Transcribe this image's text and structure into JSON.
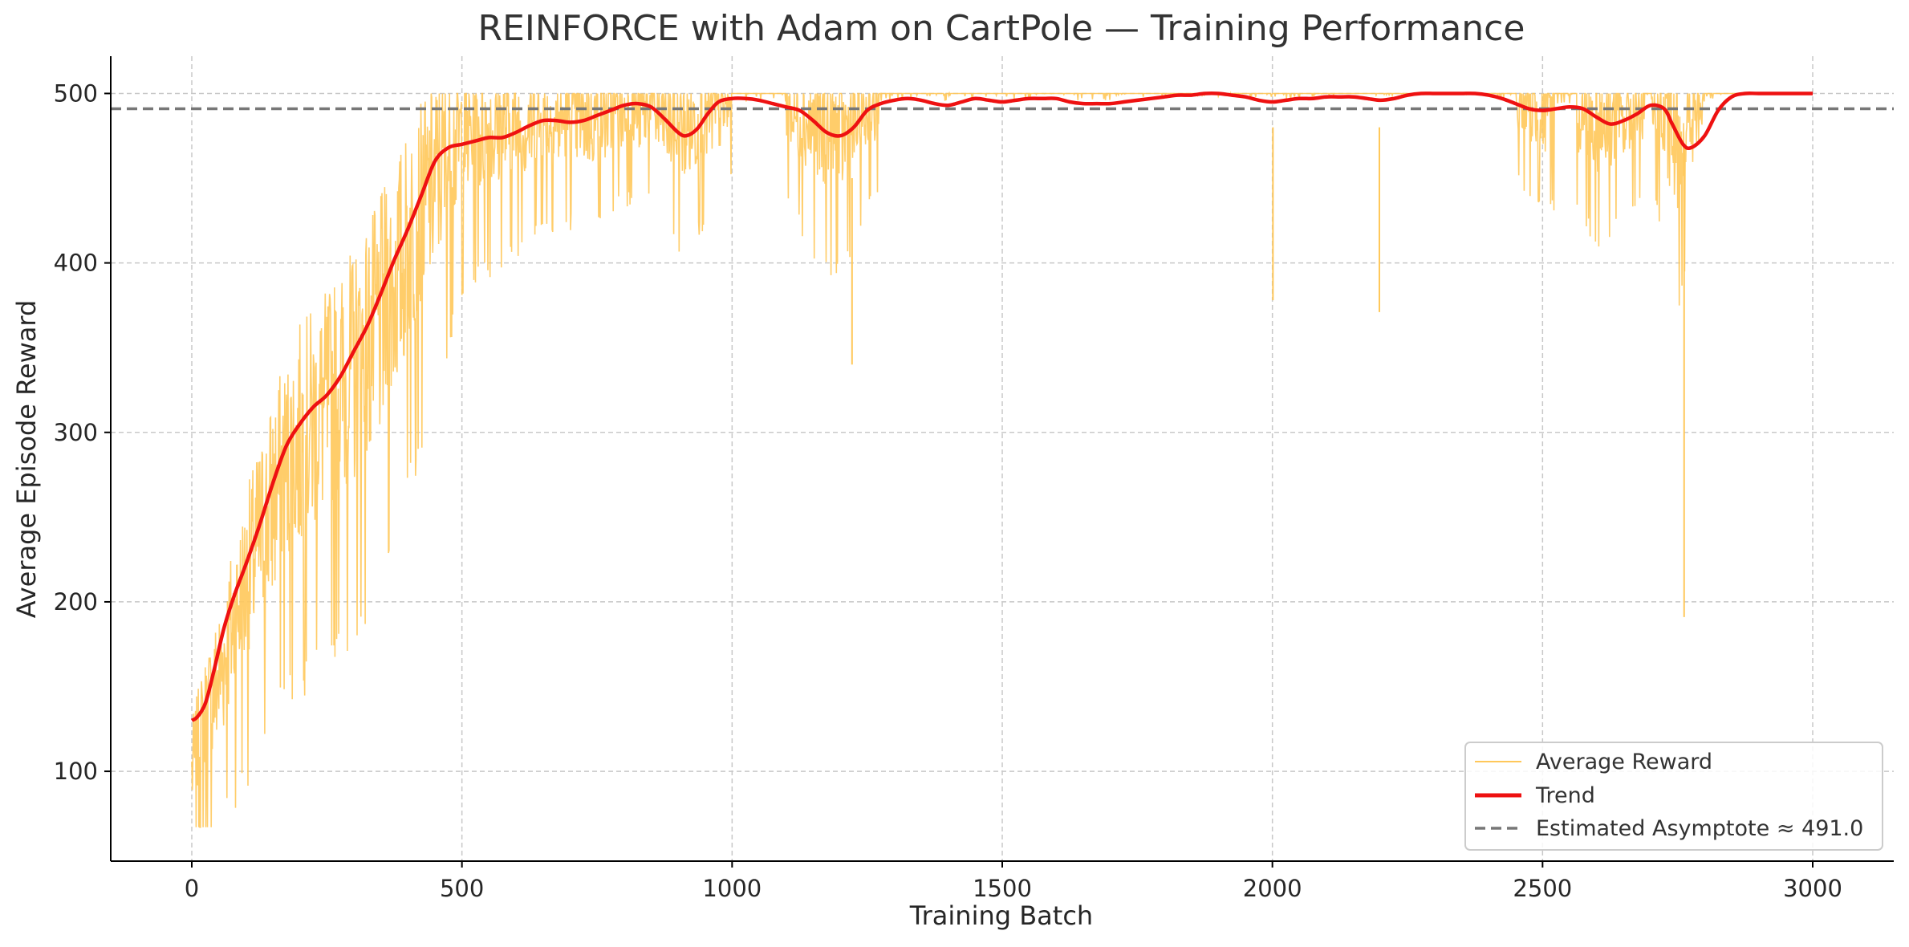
{
  "chart_data": {
    "type": "line",
    "title": "REINFORCE with Adam on CartPole — Training Performance",
    "xlabel": "Training Batch",
    "ylabel": "Average Episode Reward",
    "xlim": [
      -150,
      3150
    ],
    "ylim": [
      47,
      522
    ],
    "xticks": [
      0,
      500,
      1000,
      1500,
      2000,
      2500,
      3000
    ],
    "yticks": [
      100,
      200,
      300,
      400,
      500
    ],
    "grid": true,
    "legend_position": "bottom-right",
    "colors": {
      "average_reward": "#ffc85a",
      "trend": "#ee1111",
      "asymptote": "#777777",
      "grid": "#c8c8c8",
      "axis": "#000000"
    },
    "series": [
      {
        "name": "Average Reward",
        "style": "thin-noisy-line",
        "envelope": {
          "x": [
            0,
            25,
            50,
            75,
            100,
            125,
            150,
            175,
            200,
            250,
            300,
            350,
            400,
            450,
            500,
            550,
            600,
            650,
            700,
            750,
            800,
            850,
            900,
            950,
            1000,
            1050,
            1100,
            1150,
            1200,
            1250,
            1300,
            1350,
            1400,
            1450,
            1500,
            1550,
            1600,
            1650,
            1700,
            1750,
            1800,
            1850,
            1900,
            1950,
            2000,
            2050,
            2100,
            2150,
            2200,
            2250,
            2300,
            2350,
            2400,
            2450,
            2500,
            2550,
            2600,
            2650,
            2700,
            2750,
            2800,
            2850,
            2900,
            2950,
            3000
          ],
          "mean": [
            100,
            130,
            155,
            185,
            210,
            235,
            260,
            280,
            295,
            315,
            335,
            365,
            410,
            450,
            475,
            478,
            480,
            482,
            485,
            485,
            488,
            490,
            478,
            485,
            492,
            494,
            490,
            480,
            474,
            488,
            494,
            495,
            493,
            494,
            495,
            495,
            495,
            492,
            494,
            496,
            497,
            497,
            497,
            497,
            495,
            496,
            498,
            498,
            496,
            499,
            499,
            499,
            499,
            492,
            488,
            491,
            483,
            485,
            492,
            468,
            494,
            500,
            500,
            500,
            500
          ],
          "spread": [
            30,
            40,
            45,
            50,
            55,
            60,
            65,
            65,
            70,
            70,
            75,
            75,
            70,
            60,
            45,
            40,
            35,
            30,
            30,
            30,
            25,
            25,
            35,
            30,
            20,
            20,
            25,
            35,
            40,
            25,
            20,
            20,
            22,
            20,
            20,
            18,
            18,
            20,
            18,
            15,
            12,
            10,
            10,
            10,
            15,
            12,
            10,
            10,
            12,
            5,
            4,
            4,
            4,
            20,
            28,
            25,
            35,
            30,
            22,
            45,
            15,
            2,
            0,
            0,
            0
          ],
          "count": 3000,
          "cap": 500
        }
      },
      {
        "name": "Trend",
        "style": "thick-line",
        "x": [
          0,
          10,
          25,
          40,
          60,
          80,
          100,
          125,
          150,
          175,
          200,
          225,
          250,
          275,
          300,
          325,
          350,
          375,
          400,
          425,
          450,
          475,
          500,
          525,
          550,
          575,
          600,
          625,
          650,
          675,
          700,
          725,
          750,
          775,
          800,
          825,
          850,
          875,
          900,
          915,
          935,
          955,
          975,
          1000,
          1025,
          1050,
          1075,
          1100,
          1125,
          1150,
          1175,
          1200,
          1225,
          1250,
          1275,
          1300,
          1325,
          1350,
          1375,
          1400,
          1425,
          1450,
          1475,
          1500,
          1525,
          1550,
          1575,
          1600,
          1625,
          1650,
          1675,
          1700,
          1725,
          1750,
          1775,
          1800,
          1825,
          1850,
          1875,
          1900,
          1925,
          1950,
          1975,
          2000,
          2025,
          2050,
          2075,
          2100,
          2125,
          2150,
          2175,
          2200,
          2225,
          2250,
          2275,
          2300,
          2325,
          2350,
          2375,
          2400,
          2425,
          2450,
          2475,
          2500,
          2525,
          2550,
          2575,
          2600,
          2625,
          2650,
          2675,
          2700,
          2725,
          2740,
          2760,
          2775,
          2800,
          2825,
          2850,
          2875,
          2900,
          2950,
          3000
        ],
        "y": [
          130,
          132,
          140,
          158,
          185,
          205,
          222,
          245,
          270,
          292,
          305,
          315,
          322,
          333,
          348,
          363,
          382,
          402,
          420,
          440,
          460,
          468,
          470,
          472,
          474,
          474,
          477,
          481,
          484,
          484,
          483,
          484,
          487,
          490,
          493,
          494,
          492,
          485,
          477,
          475,
          479,
          488,
          495,
          497,
          497,
          496,
          494,
          492,
          490,
          484,
          477,
          475,
          480,
          490,
          494,
          496,
          497,
          496,
          494,
          493,
          495,
          497,
          496,
          495,
          496,
          497,
          497,
          497,
          495,
          494,
          494,
          494,
          495,
          496,
          497,
          498,
          499,
          499,
          500,
          500,
          499,
          498,
          496,
          495,
          496,
          497,
          497,
          498,
          498,
          498,
          497,
          496,
          497,
          499,
          500,
          500,
          500,
          500,
          500,
          499,
          497,
          494,
          491,
          490,
          491,
          492,
          491,
          486,
          482,
          484,
          488,
          493,
          491,
          482,
          470,
          468,
          475,
          490,
          498,
          500,
          500,
          500,
          500
        ]
      },
      {
        "name": "Estimated Asymptote ≈ 491.0",
        "style": "dashed-hline",
        "y": 491.0
      }
    ]
  }
}
